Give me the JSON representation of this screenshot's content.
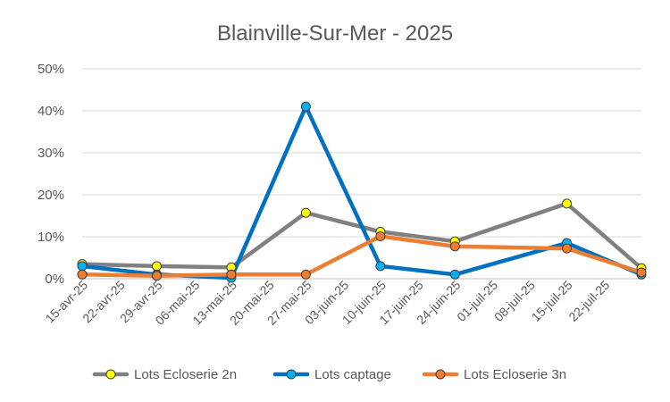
{
  "chart_data": {
    "type": "line",
    "title": "Blainville-Sur-Mer - 2025",
    "xlabel": "",
    "ylabel": "",
    "categories": [
      "15-avr-25",
      "22-avr-25",
      "29-avr-25",
      "06-mai-25",
      "13-mai-25",
      "20-mai-25",
      "27-mai-25",
      "03-juin-25",
      "10-juin-25",
      "17-juin-25",
      "24-juin-25",
      "01-juil-25",
      "08-juil-25",
      "15-juil-25",
      "22-juil-25"
    ],
    "x_dates": [
      "2025-04-15",
      "2025-04-22",
      "2025-04-29",
      "2025-05-06",
      "2025-05-13",
      "2025-05-20",
      "2025-05-27",
      "2025-06-03",
      "2025-06-10",
      "2025-06-17",
      "2025-06-24",
      "2025-07-01",
      "2025-07-08",
      "2025-07-15",
      "2025-07-22"
    ],
    "ylim": [
      0,
      0.5
    ],
    "yticks": [
      "0%",
      "10%",
      "20%",
      "30%",
      "40%",
      "50%"
    ],
    "grid": true,
    "legend_position": "bottom",
    "series": [
      {
        "name": "Lots Ecloserie 2n",
        "line_color": "#808080",
        "marker_color": "#FFFF00",
        "points": [
          {
            "x": "2025-04-15",
            "y": 0.035
          },
          {
            "x": "2025-04-29",
            "y": 0.03
          },
          {
            "x": "2025-05-13",
            "y": 0.027
          },
          {
            "x": "2025-05-27",
            "y": 0.157
          },
          {
            "x": "2025-06-10",
            "y": 0.112
          },
          {
            "x": "2025-06-24",
            "y": 0.089
          },
          {
            "x": "2025-07-15",
            "y": 0.179
          },
          {
            "x": "2025-07-29",
            "y": 0.025
          }
        ]
      },
      {
        "name": "Lots captage",
        "line_color": "#0070C0",
        "marker_color": "#00B0F0",
        "points": [
          {
            "x": "2025-04-15",
            "y": 0.03
          },
          {
            "x": "2025-04-29",
            "y": 0.01
          },
          {
            "x": "2025-05-13",
            "y": 0.002
          },
          {
            "x": "2025-05-27",
            "y": 0.41
          },
          {
            "x": "2025-06-10",
            "y": 0.03
          },
          {
            "x": "2025-06-24",
            "y": 0.01
          },
          {
            "x": "2025-07-15",
            "y": 0.085
          },
          {
            "x": "2025-07-29",
            "y": 0.01
          }
        ]
      },
      {
        "name": "Lots Ecloserie 3n",
        "line_color": "#ED7D31",
        "marker_color": "#ED7D31",
        "points": [
          {
            "x": "2025-04-15",
            "y": 0.01
          },
          {
            "x": "2025-04-29",
            "y": 0.007
          },
          {
            "x": "2025-05-13",
            "y": 0.01
          },
          {
            "x": "2025-05-27",
            "y": 0.01
          },
          {
            "x": "2025-06-10",
            "y": 0.101
          },
          {
            "x": "2025-06-24",
            "y": 0.077
          },
          {
            "x": "2025-07-15",
            "y": 0.072
          },
          {
            "x": "2025-07-29",
            "y": 0.015
          }
        ]
      }
    ]
  }
}
